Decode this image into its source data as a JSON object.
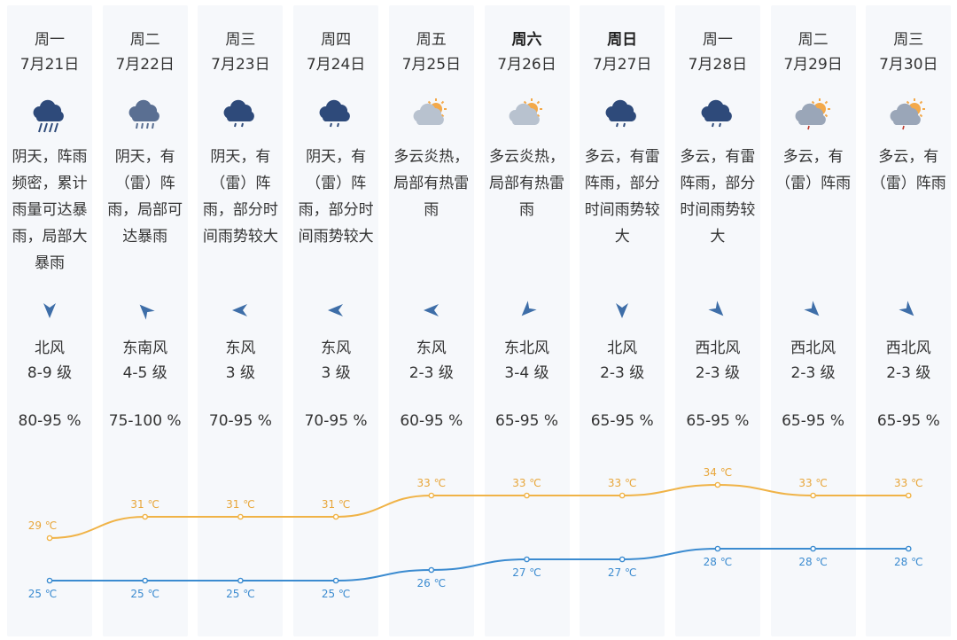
{
  "days": [
    {
      "weekday": "周一",
      "date": "7月21日",
      "icon": "heavy-rain-icon",
      "desc": "阴天，阵雨频密，累计雨量可达暴雨，局部大暴雨",
      "wind_arrow_deg": 180,
      "wind_dir": "北风",
      "wind_level": "8-9 级",
      "humidity": "80-95 %",
      "high": 29,
      "low": 25,
      "high_label": "29 ℃",
      "low_label": "25 ℃",
      "bold": false
    },
    {
      "weekday": "周二",
      "date": "7月22日",
      "icon": "rain-icon",
      "desc": "阴天，有（雷）阵雨，局部可达暴雨",
      "wind_arrow_deg": 315,
      "wind_dir": "东南风",
      "wind_level": "4-5 级",
      "humidity": "75-100 %",
      "high": 31,
      "low": 25,
      "high_label": "31 ℃",
      "low_label": "25 ℃",
      "bold": false
    },
    {
      "weekday": "周三",
      "date": "7月23日",
      "icon": "thunder-shower-icon",
      "desc": "阴天，有（雷）阵雨，部分时间雨势较大",
      "wind_arrow_deg": 270,
      "wind_dir": "东风",
      "wind_level": "3 级",
      "humidity": "70-95 %",
      "high": 31,
      "low": 25,
      "high_label": "31 ℃",
      "low_label": "25 ℃",
      "bold": false
    },
    {
      "weekday": "周四",
      "date": "7月24日",
      "icon": "thunder-shower-icon",
      "desc": "阴天，有（雷）阵雨，部分时间雨势较大",
      "wind_arrow_deg": 270,
      "wind_dir": "东风",
      "wind_level": "3 级",
      "humidity": "70-95 %",
      "high": 31,
      "low": 25,
      "high_label": "31 ℃",
      "low_label": "25 ℃",
      "bold": false
    },
    {
      "weekday": "周五",
      "date": "7月25日",
      "icon": "partly-cloudy-hot-icon",
      "desc": "多云炎热，局部有热雷雨",
      "wind_arrow_deg": 270,
      "wind_dir": "东风",
      "wind_level": "2-3 级",
      "humidity": "60-95 %",
      "high": 33,
      "low": 26,
      "high_label": "33 ℃",
      "low_label": "26 ℃",
      "bold": false
    },
    {
      "weekday": "周六",
      "date": "7月26日",
      "icon": "partly-cloudy-hot-icon",
      "desc": "多云炎热，局部有热雷雨",
      "wind_arrow_deg": 225,
      "wind_dir": "东北风",
      "wind_level": "3-4 级",
      "humidity": "65-95 %",
      "high": 33,
      "low": 27,
      "high_label": "33 ℃",
      "low_label": "27 ℃",
      "bold": true
    },
    {
      "weekday": "周日",
      "date": "7月27日",
      "icon": "thunder-shower-icon",
      "desc": "多云，有雷阵雨，部分时间雨势较大",
      "wind_arrow_deg": 180,
      "wind_dir": "北风",
      "wind_level": "2-3 级",
      "humidity": "65-95 %",
      "high": 33,
      "low": 27,
      "high_label": "33 ℃",
      "low_label": "27 ℃",
      "bold": true
    },
    {
      "weekday": "周一",
      "date": "7月28日",
      "icon": "thunder-shower-icon",
      "desc": "多云，有雷阵雨，部分时间雨势较大",
      "wind_arrow_deg": 135,
      "wind_dir": "西北风",
      "wind_level": "2-3 级",
      "humidity": "65-95 %",
      "high": 34,
      "low": 28,
      "high_label": "34 ℃",
      "low_label": "28 ℃",
      "bold": false
    },
    {
      "weekday": "周二",
      "date": "7月29日",
      "icon": "sun-cloud-rain-icon",
      "desc": "多云，有（雷）阵雨",
      "wind_arrow_deg": 135,
      "wind_dir": "西北风",
      "wind_level": "2-3 级",
      "humidity": "65-95 %",
      "high": 33,
      "low": 28,
      "high_label": "33 ℃",
      "low_label": "28 ℃",
      "bold": false
    },
    {
      "weekday": "周三",
      "date": "7月30日",
      "icon": "sun-cloud-rain-icon",
      "desc": "多云，有（雷）阵雨",
      "wind_arrow_deg": 135,
      "wind_dir": "西北风",
      "wind_level": "2-3 级",
      "humidity": "65-95 %",
      "high": 33,
      "low": 28,
      "high_label": "33 ℃",
      "low_label": "28 ℃",
      "bold": false
    }
  ],
  "colors": {
    "high_line": "#f0b347",
    "low_line": "#3b8bd0",
    "column_bg": "#f6f8fb",
    "cloud": "#2e4a7a",
    "sun": "#f3a94a"
  }
}
